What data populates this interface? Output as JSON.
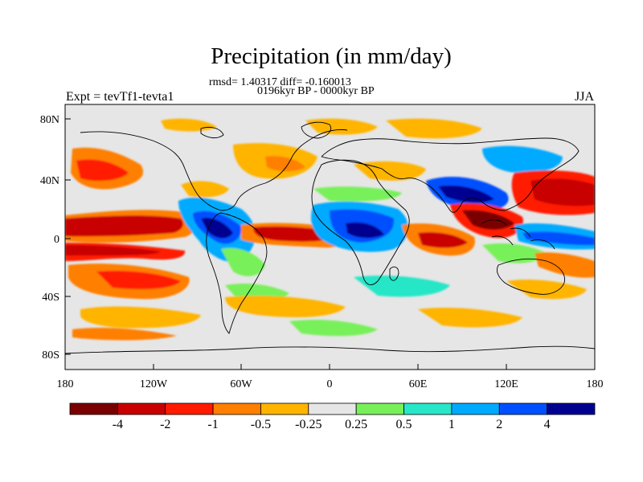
{
  "header": {
    "title": "Precipitation (in mm/day)",
    "stats": "rmsd= 1.40317 diff= -0.160013",
    "period": "0196kyr BP - 0000kyr BP",
    "left_label": "Expt = tevTf1-tevta1",
    "right_label": "JJA"
  },
  "axes": {
    "lat_labels": [
      "80N",
      "40N",
      "0",
      "40S",
      "80S"
    ],
    "lon_labels": [
      "180",
      "120W",
      "60W",
      "0",
      "60E",
      "120E",
      "180"
    ]
  },
  "colorbar": {
    "levels": [
      "-4",
      "-2",
      "-1",
      "-0.5",
      "-0.25",
      "0.25",
      "0.5",
      "1",
      "2",
      "4"
    ],
    "colors": [
      "#7a0000",
      "#c80000",
      "#ff1a00",
      "#ff7f00",
      "#ffb400",
      "#e6e6e6",
      "#78f05a",
      "#28e6c8",
      "#00aaff",
      "#0050ff",
      "#000090"
    ]
  },
  "map": {
    "background_color": "#e6e6e6",
    "coastline_color": "#000000"
  }
}
